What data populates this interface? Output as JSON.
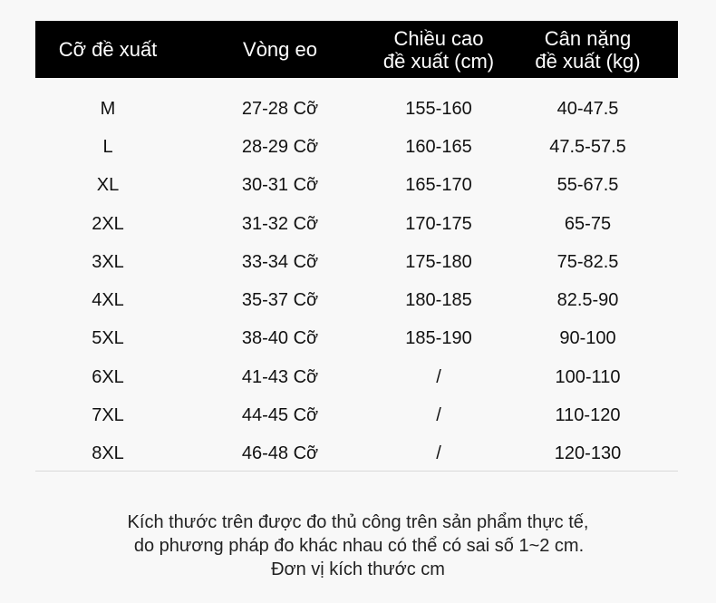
{
  "table": {
    "headers": [
      [
        "Cỡ đề xuất"
      ],
      [
        "Vòng eo"
      ],
      [
        "Chiều cao",
        "đề xuất (cm)"
      ],
      [
        "Cân nặng",
        "đề xuất (kg)"
      ]
    ],
    "rows": [
      [
        "M",
        "27-28 Cỡ",
        "155-160",
        "40-47.5"
      ],
      [
        "L",
        "28-29 Cỡ",
        "160-165",
        "47.5-57.5"
      ],
      [
        "XL",
        "30-31 Cỡ",
        "165-170",
        "55-67.5"
      ],
      [
        "2XL",
        "31-32 Cỡ",
        "170-175",
        "65-75"
      ],
      [
        "3XL",
        "33-34 Cỡ",
        "175-180",
        "75-82.5"
      ],
      [
        "4XL",
        "35-37 Cỡ",
        "180-185",
        "82.5-90"
      ],
      [
        "5XL",
        "38-40 Cỡ",
        "185-190",
        "90-100"
      ],
      [
        "6XL",
        "41-43 Cỡ",
        "/",
        "100-110"
      ],
      [
        "7XL",
        "44-45 Cỡ",
        "/",
        "110-120"
      ],
      [
        "8XL",
        "46-48 Cỡ",
        "/",
        "120-130"
      ]
    ]
  },
  "footnote": {
    "line1": "Kích thước trên được đo thủ công trên sản phẩm thực tế,",
    "line2": "do phương pháp đo khác nhau có thể có sai số 1~2 cm.",
    "line3": "Đơn vị kích thước cm"
  },
  "colors": {
    "header_bg": "#000000",
    "header_text": "#ffffff",
    "page_bg": "#f8f8f8",
    "divider": "#d9d9d9"
  }
}
